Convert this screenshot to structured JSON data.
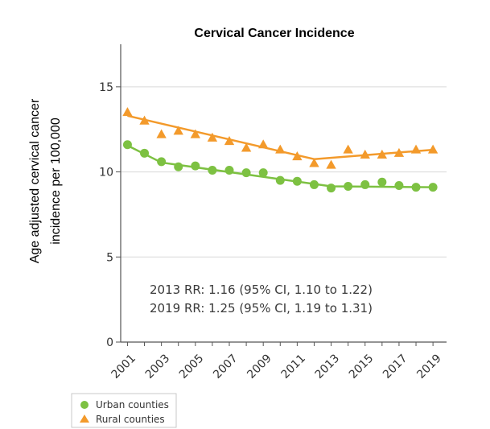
{
  "chart_data": {
    "type": "line",
    "title": "Cervical Cancer Incidence",
    "ylabel_lines": [
      "Age adjusted cervical cancer",
      "incidence  per 100,000"
    ],
    "xlabel": "",
    "x": [
      2001,
      2002,
      2003,
      2004,
      2005,
      2006,
      2007,
      2008,
      2009,
      2010,
      2011,
      2012,
      2013,
      2014,
      2015,
      2016,
      2017,
      2018,
      2019
    ],
    "x_tick_labels": [
      "2001",
      "2003",
      "2005",
      "2007",
      "2009",
      "2011",
      "2013",
      "2015",
      "2017",
      "2019"
    ],
    "y_ticks": [
      0,
      5,
      10,
      15
    ],
    "ylim": [
      0,
      17.5
    ],
    "grid": "horizontal",
    "legend_position": "bottom-left",
    "annotations": [
      "2013 RR: 1.16 (95% CI, 1.10 to 1.22)",
      "2019 RR: 1.25 (95% CI, 1.19 to 1.31)"
    ],
    "series": [
      {
        "name": "Urban counties",
        "marker": "circle",
        "color": "#7dc142",
        "values": [
          11.6,
          11.1,
          10.6,
          10.3,
          10.35,
          10.1,
          10.1,
          9.95,
          9.95,
          9.5,
          9.45,
          9.25,
          9.05,
          9.15,
          9.25,
          9.4,
          9.2,
          9.1,
          9.1
        ],
        "trend": [
          {
            "x": 2001,
            "y": 11.55
          },
          {
            "x": 2003,
            "y": 10.55
          },
          {
            "x": 2013,
            "y": 9.15
          },
          {
            "x": 2019,
            "y": 9.1
          }
        ]
      },
      {
        "name": "Rural counties",
        "marker": "triangle",
        "color": "#f39a2b",
        "values": [
          13.5,
          13.0,
          12.2,
          12.4,
          12.2,
          12.0,
          11.8,
          11.4,
          11.6,
          11.3,
          10.9,
          10.5,
          10.4,
          11.3,
          11.0,
          11.0,
          11.1,
          11.3,
          11.3
        ],
        "trend": [
          {
            "x": 2001,
            "y": 13.3
          },
          {
            "x": 2012,
            "y": 10.75
          },
          {
            "x": 2019,
            "y": 11.3
          }
        ]
      }
    ]
  }
}
